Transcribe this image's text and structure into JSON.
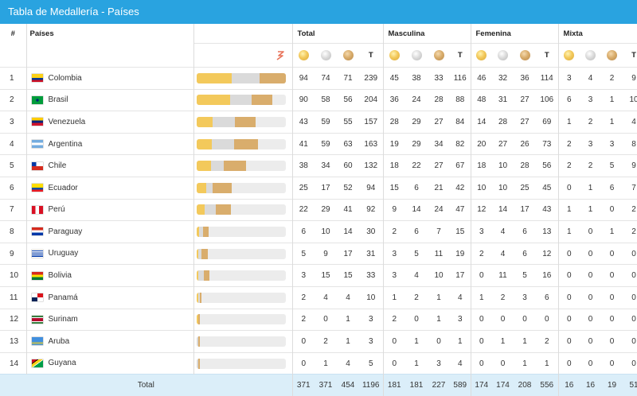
{
  "title": "Tabla de Medallería - Países",
  "headers": {
    "rank": "#",
    "country": "Países",
    "groups": [
      "Total",
      "Masculina",
      "Femenina",
      "Mixta"
    ],
    "total_col": "T"
  },
  "colors": {
    "header_bg": "#29a3e0",
    "gold": "#f3c95b",
    "silver": "#dadada",
    "bronze": "#d9ad6c",
    "total_row_bg": "#dbeef9"
  },
  "rows": [
    {
      "rank": "1",
      "country": "Colombia",
      "flag": "colombia",
      "vals": [
        "94",
        "74",
        "71",
        "239",
        "45",
        "38",
        "33",
        "116",
        "46",
        "32",
        "36",
        "114",
        "3",
        "4",
        "2",
        "9"
      ],
      "bar": [
        94,
        74,
        71
      ]
    },
    {
      "rank": "2",
      "country": "Brasil",
      "flag": "brasil",
      "vals": [
        "90",
        "58",
        "56",
        "204",
        "36",
        "24",
        "28",
        "88",
        "48",
        "31",
        "27",
        "106",
        "6",
        "3",
        "1",
        "10"
      ],
      "bar": [
        90,
        58,
        56
      ]
    },
    {
      "rank": "3",
      "country": "Venezuela",
      "flag": "venezuela",
      "vals": [
        "43",
        "59",
        "55",
        "157",
        "28",
        "29",
        "27",
        "84",
        "14",
        "28",
        "27",
        "69",
        "1",
        "2",
        "1",
        "4"
      ],
      "bar": [
        43,
        59,
        55
      ]
    },
    {
      "rank": "4",
      "country": "Argentina",
      "flag": "argentina",
      "vals": [
        "41",
        "59",
        "63",
        "163",
        "19",
        "29",
        "34",
        "82",
        "20",
        "27",
        "26",
        "73",
        "2",
        "3",
        "3",
        "8"
      ],
      "bar": [
        41,
        59,
        63
      ]
    },
    {
      "rank": "5",
      "country": "Chile",
      "flag": "chile",
      "vals": [
        "38",
        "34",
        "60",
        "132",
        "18",
        "22",
        "27",
        "67",
        "18",
        "10",
        "28",
        "56",
        "2",
        "2",
        "5",
        "9"
      ],
      "bar": [
        38,
        34,
        60
      ]
    },
    {
      "rank": "6",
      "country": "Ecuador",
      "flag": "ecuador",
      "vals": [
        "25",
        "17",
        "52",
        "94",
        "15",
        "6",
        "21",
        "42",
        "10",
        "10",
        "25",
        "45",
        "0",
        "1",
        "6",
        "7"
      ],
      "bar": [
        25,
        17,
        52
      ]
    },
    {
      "rank": "7",
      "country": "Perú",
      "flag": "peru",
      "vals": [
        "22",
        "29",
        "41",
        "92",
        "9",
        "14",
        "24",
        "47",
        "12",
        "14",
        "17",
        "43",
        "1",
        "1",
        "0",
        "2"
      ],
      "bar": [
        22,
        29,
        41
      ]
    },
    {
      "rank": "8",
      "country": "Paraguay",
      "flag": "paraguay",
      "vals": [
        "6",
        "10",
        "14",
        "30",
        "2",
        "6",
        "7",
        "15",
        "3",
        "4",
        "6",
        "13",
        "1",
        "0",
        "1",
        "2"
      ],
      "bar": [
        6,
        10,
        14
      ]
    },
    {
      "rank": "9",
      "country": "Uruguay",
      "flag": "uruguay",
      "vals": [
        "5",
        "9",
        "17",
        "31",
        "3",
        "5",
        "11",
        "19",
        "2",
        "4",
        "6",
        "12",
        "0",
        "0",
        "0",
        "0"
      ],
      "bar": [
        5,
        9,
        17
      ]
    },
    {
      "rank": "10",
      "country": "Bolivia",
      "flag": "bolivia",
      "vals": [
        "3",
        "15",
        "15",
        "33",
        "3",
        "4",
        "10",
        "17",
        "0",
        "11",
        "5",
        "16",
        "0",
        "0",
        "0",
        "0"
      ],
      "bar": [
        3,
        15,
        15
      ]
    },
    {
      "rank": "11",
      "country": "Panamá",
      "flag": "panama",
      "vals": [
        "2",
        "4",
        "4",
        "10",
        "1",
        "2",
        "1",
        "4",
        "1",
        "2",
        "3",
        "6",
        "0",
        "0",
        "0",
        "0"
      ],
      "bar": [
        2,
        4,
        4
      ]
    },
    {
      "rank": "12",
      "country": "Surinam",
      "flag": "surinam",
      "vals": [
        "2",
        "0",
        "1",
        "3",
        "2",
        "0",
        "1",
        "3",
        "0",
        "0",
        "0",
        "0",
        "0",
        "0",
        "0",
        "0"
      ],
      "bar": [
        2,
        0,
        1
      ]
    },
    {
      "rank": "13",
      "country": "Aruba",
      "flag": "aruba",
      "vals": [
        "0",
        "2",
        "1",
        "3",
        "0",
        "1",
        "0",
        "1",
        "0",
        "1",
        "1",
        "2",
        "0",
        "0",
        "0",
        "0"
      ],
      "bar": [
        0,
        2,
        1
      ]
    },
    {
      "rank": "14",
      "country": "Guyana",
      "flag": "guyana",
      "vals": [
        "0",
        "1",
        "4",
        "5",
        "0",
        "1",
        "3",
        "4",
        "0",
        "0",
        "1",
        "1",
        "0",
        "0",
        "0",
        "0"
      ],
      "bar": [
        0,
        1,
        4
      ]
    }
  ],
  "totals": {
    "label": "Total",
    "vals": [
      "371",
      "371",
      "454",
      "1196",
      "181",
      "181",
      "227",
      "589",
      "174",
      "174",
      "208",
      "556",
      "16",
      "16",
      "19",
      "51"
    ]
  }
}
